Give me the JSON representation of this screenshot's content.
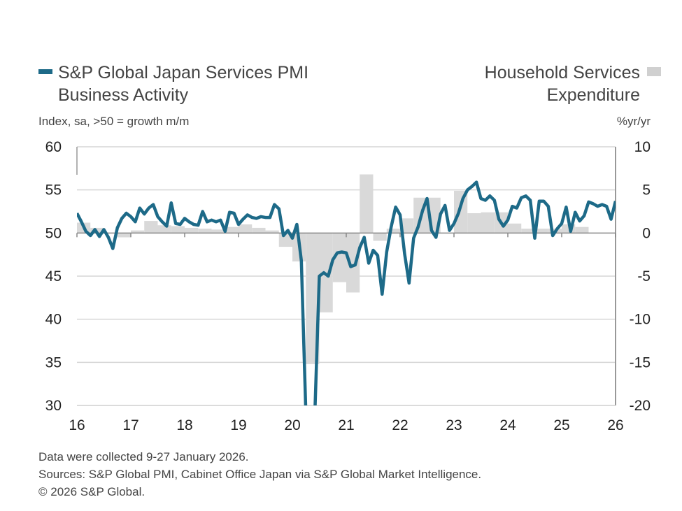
{
  "chart_data": {
    "type": "bar+line",
    "legend": {
      "line_label": [
        "S&P Global Japan Services PMI",
        "Business Activity"
      ],
      "bar_label": [
        "Household Services",
        "Expenditure"
      ]
    },
    "left_axis_label": "Index, sa, >50 = growth m/m",
    "right_axis_label": "%yr/yr",
    "left_ylim": [
      30,
      60
    ],
    "right_ylim": [
      -20,
      10
    ],
    "left_ticks": [
      "60",
      "55",
      "50",
      "45",
      "40",
      "35",
      "30"
    ],
    "right_ticks": [
      "10",
      "5",
      "0",
      "-5",
      "-10",
      "-15",
      "-20"
    ],
    "x_ticks": [
      "16",
      "17",
      "18",
      "19",
      "20",
      "21",
      "22",
      "23",
      "24",
      "25",
      "26"
    ],
    "grid": true,
    "colors": {
      "line": "#1d6a88",
      "bars": "#d9d9d9"
    },
    "series": [
      {
        "name": "S&P Global Japan Services PMI Business Activity",
        "type": "line",
        "axis": "left",
        "start": "2016-01",
        "frequency": "monthly",
        "values": [
          52.3,
          51.3,
          50.2,
          49.7,
          50.4,
          49.6,
          50.4,
          49.5,
          48.2,
          50.6,
          51.7,
          52.3,
          51.9,
          51.3,
          52.9,
          52.2,
          52.9,
          53.3,
          51.9,
          51.3,
          50.8,
          53.5,
          51.1,
          51.0,
          51.7,
          51.3,
          51.0,
          50.9,
          52.5,
          51.3,
          51.5,
          51.3,
          51.5,
          50.2,
          52.4,
          52.3,
          51.0,
          51.6,
          52.1,
          51.8,
          51.7,
          51.9,
          51.8,
          51.8,
          53.3,
          52.8,
          49.7,
          50.3,
          49.4,
          51.0,
          46.8,
          28.0,
          26.5,
          29.0,
          45.0,
          45.4,
          45.0,
          46.9,
          47.7,
          47.8,
          47.7,
          46.1,
          46.3,
          48.3,
          49.5,
          46.5,
          48.0,
          47.4,
          42.9,
          47.8,
          50.7,
          53.0,
          52.1,
          47.6,
          44.2,
          49.4,
          50.7,
          52.6,
          54.0,
          50.3,
          49.5,
          52.2,
          53.2,
          50.3,
          51.1,
          52.3,
          54.0,
          55.0,
          55.4,
          55.9,
          54.0,
          53.8,
          54.3,
          53.8,
          51.6,
          50.8,
          51.5,
          53.1,
          52.9,
          54.1,
          54.3,
          53.8,
          49.4,
          53.7,
          53.7,
          53.1,
          49.7,
          50.5,
          51.1,
          53.0,
          50.2,
          52.4,
          51.4,
          52.0,
          53.6,
          53.4,
          53.1,
          53.3,
          53.1,
          51.6,
          53.7
        ]
      },
      {
        "name": "Household Services Expenditure",
        "type": "bar",
        "axis": "right",
        "start": "2016-Q1",
        "frequency": "quarterly",
        "values": [
          1.2,
          0.6,
          0.0,
          -0.5,
          0.3,
          1.4,
          0.9,
          0.8,
          0.6,
          0.5,
          0.4,
          0.7,
          1.0,
          0.6,
          0.3,
          -1.6,
          -3.3,
          -15.2,
          -9.2,
          -5.7,
          -6.9,
          6.8,
          -0.9,
          0.5,
          1.7,
          4.1,
          4.1,
          0.0,
          4.9,
          2.3,
          2.4,
          2.4,
          1.1,
          0.5,
          0.5,
          0.5,
          1.0,
          0.7,
          0.0,
          0.0
        ]
      }
    ]
  },
  "footer": {
    "line1": "Data were collected 9-27 January 2026.",
    "line2": "Sources: S&P Global PMI, Cabinet Office Japan via S&P Global Market Intelligence.",
    "line3": "© 2026 S&P Global."
  }
}
